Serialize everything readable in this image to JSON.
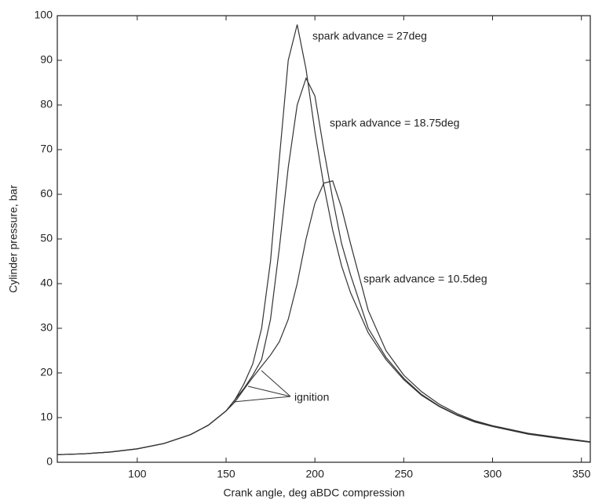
{
  "chart_data": {
    "type": "line",
    "xlabel": "Crank angle, deg aBDC compression",
    "ylabel": "Cylinder pressure, bar",
    "x": [
      55,
      70,
      85,
      100,
      115,
      130,
      140,
      150,
      155,
      160,
      165,
      170,
      175,
      180,
      185,
      190,
      195,
      200,
      205,
      210,
      215,
      220,
      230,
      240,
      250,
      260,
      270,
      280,
      290,
      300,
      320,
      340,
      355
    ],
    "series": [
      {
        "name": "spark advance = 27deg",
        "color": "#333333",
        "values": [
          1.7,
          1.9,
          2.3,
          3,
          4.2,
          6.2,
          8.3,
          11.5,
          14,
          17.5,
          22,
          30,
          45,
          68,
          90,
          98,
          88,
          74,
          62,
          52,
          44,
          38,
          29,
          23,
          18.5,
          15,
          12.5,
          10.5,
          9,
          8,
          6.3,
          5.2,
          4.5
        ]
      },
      {
        "name": "spark advance = 18.75deg",
        "color": "#333333",
        "values": [
          1.7,
          1.9,
          2.3,
          3,
          4.2,
          6.2,
          8.3,
          11.5,
          14,
          16.5,
          19.5,
          23,
          32,
          48,
          66,
          80,
          86,
          82,
          70,
          59,
          49,
          42,
          30,
          23.5,
          18.8,
          15.2,
          12.6,
          10.6,
          9.1,
          8.1,
          6.4,
          5.3,
          4.5
        ]
      },
      {
        "name": "spark advance = 10.5deg",
        "color": "#333333",
        "values": [
          1.7,
          1.9,
          2.3,
          3,
          4.2,
          6.2,
          8.3,
          11.5,
          13.5,
          16.3,
          19,
          21.5,
          24,
          27,
          32,
          40,
          50,
          58,
          62.5,
          63,
          57,
          49,
          34,
          25,
          19.5,
          15.8,
          13,
          10.9,
          9.3,
          8.2,
          6.5,
          5.4,
          4.6
        ]
      }
    ],
    "annotation": "ignition",
    "xlim": [
      55,
      355
    ],
    "xticks": [
      100,
      150,
      200,
      250,
      300,
      350
    ],
    "ylim": [
      0,
      100
    ],
    "yticks": [
      0,
      10,
      20,
      30,
      40,
      50,
      60,
      70,
      80,
      90,
      100
    ]
  }
}
